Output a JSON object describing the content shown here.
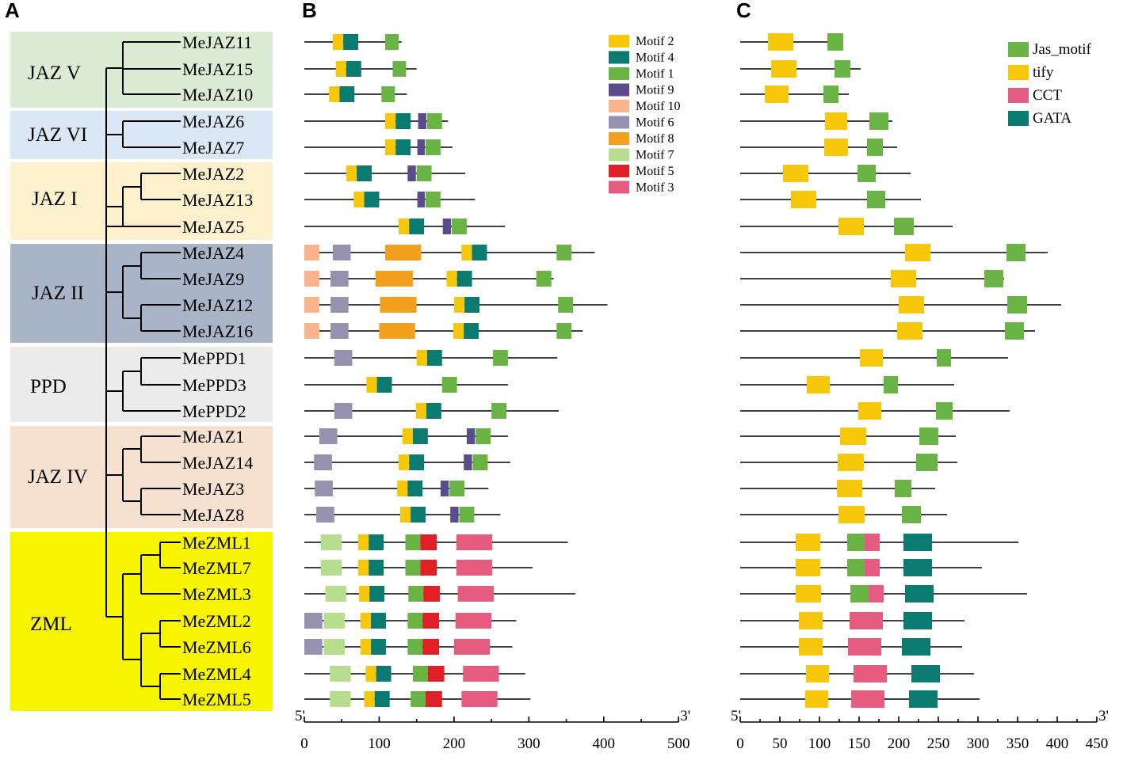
{
  "panels": {
    "a": "A",
    "b": "B",
    "c": "C"
  },
  "colors": {
    "clades": {
      "JAZ V": "#dcecd4",
      "JAZ VI": "#dbe7f5",
      "JAZ I": "#fdf0cc",
      "JAZ II": "#a9b4c6",
      "PPD": "#ebebeb",
      "JAZ IV": "#f6e1d1",
      "ZML": "#f7f500"
    },
    "motifs": {
      "Motif 1": "#6ab446",
      "Motif 2": "#f6c70a",
      "Motif 3": "#e55c80",
      "Motif 4": "#0b7b71",
      "Motif 5": "#e01f26",
      "Motif 6": "#9791b0",
      "Motif 7": "#b7de8e",
      "Motif 8": "#f4a01f",
      "Motif 9": "#5b4a8c",
      "Motif 10": "#f9b48d"
    },
    "domains": {
      "Jas_motif": "#6ab446",
      "tify": "#f6c70a",
      "CCT": "#e55c80",
      "GATA": "#0b7b71"
    }
  },
  "clades": [
    {
      "label": "JAZ V",
      "genes": [
        "MeJAZ11",
        "MeJAZ15",
        "MeJAZ10"
      ]
    },
    {
      "label": "JAZ VI",
      "genes": [
        "MeJAZ6",
        "MeJAZ7"
      ]
    },
    {
      "label": "JAZ I",
      "genes": [
        "MeJAZ2",
        "MeJAZ13",
        "MeJAZ5"
      ]
    },
    {
      "label": "JAZ II",
      "genes": [
        "MeJAZ4",
        "MeJAZ9",
        "MeJAZ12",
        "MeJAZ16"
      ]
    },
    {
      "label": "PPD",
      "genes": [
        "MePPD1",
        "MePPD3",
        "MePPD2"
      ]
    },
    {
      "label": "JAZ IV",
      "genes": [
        "MeJAZ1",
        "MeJAZ14",
        "MeJAZ3",
        "MeJAZ8"
      ]
    },
    {
      "label": "ZML",
      "genes": [
        "MeZML1",
        "MeZML7",
        "MeZML3",
        "MeZML2",
        "MeZML6",
        "MeZML4",
        "MeZML5"
      ]
    }
  ],
  "legend_b": [
    "Motif 2",
    "Motif 4",
    "Motif 1",
    "Motif 9",
    "Motif 10",
    "Motif 6",
    "Motif 8",
    "Motif 7",
    "Motif 5",
    "Motif 3"
  ],
  "legend_c": [
    "Jas_motif",
    "tify",
    "CCT",
    "GATA"
  ],
  "axis_b": {
    "max": 500,
    "ticks": [
      0,
      100,
      200,
      300,
      400,
      500
    ],
    "start_label": "5'",
    "end_label": "3'"
  },
  "axis_c": {
    "max": 450,
    "ticks": [
      0,
      50,
      100,
      150,
      200,
      250,
      300,
      350,
      400,
      450
    ],
    "start_label": "5'",
    "end_label": "3'"
  },
  "proteins": [
    {
      "gene": "MeJAZ11",
      "len_b": 130,
      "len_c": 130,
      "motifs": [
        [
          "Motif 2",
          38,
          52
        ],
        [
          "Motif 4",
          52,
          72
        ],
        [
          "Motif 1",
          108,
          126
        ]
      ],
      "domains": [
        [
          "tify",
          35,
          67
        ],
        [
          "Jas_motif",
          110,
          130
        ]
      ]
    },
    {
      "gene": "MeJAZ15",
      "len_b": 150,
      "len_c": 152,
      "motifs": [
        [
          "Motif 2",
          42,
          56
        ],
        [
          "Motif 4",
          56,
          76
        ],
        [
          "Motif 1",
          118,
          136
        ]
      ],
      "domains": [
        [
          "tify",
          39,
          71
        ],
        [
          "Jas_motif",
          119,
          139
        ]
      ]
    },
    {
      "gene": "MeJAZ10",
      "len_b": 137,
      "len_c": 137,
      "motifs": [
        [
          "Motif 2",
          33,
          47
        ],
        [
          "Motif 4",
          47,
          67
        ],
        [
          "Motif 1",
          103,
          121
        ]
      ],
      "domains": [
        [
          "tify",
          31,
          61
        ],
        [
          "Jas_motif",
          105,
          124
        ]
      ]
    },
    {
      "gene": "MeJAZ6",
      "len_b": 192,
      "len_c": 192,
      "motifs": [
        [
          "Motif 2",
          108,
          122
        ],
        [
          "Motif 4",
          122,
          142
        ],
        [
          "Motif 9",
          152,
          163
        ],
        [
          "Motif 1",
          164,
          184
        ]
      ],
      "domains": [
        [
          "tify",
          107,
          135
        ],
        [
          "Jas_motif",
          163,
          187
        ]
      ]
    },
    {
      "gene": "MeJAZ7",
      "len_b": 198,
      "len_c": 198,
      "motifs": [
        [
          "Motif 2",
          108,
          122
        ],
        [
          "Motif 4",
          122,
          142
        ],
        [
          "Motif 9",
          151,
          161
        ],
        [
          "Motif 1",
          162,
          182
        ]
      ],
      "domains": [
        [
          "tify",
          106,
          136
        ],
        [
          "Jas_motif",
          160,
          180
        ]
      ]
    },
    {
      "gene": "MeJAZ2",
      "len_b": 215,
      "len_c": 215,
      "motifs": [
        [
          "Motif 2",
          56,
          70
        ],
        [
          "Motif 4",
          70,
          90
        ],
        [
          "Motif 9",
          138,
          149
        ],
        [
          "Motif 1",
          150,
          170
        ]
      ],
      "domains": [
        [
          "tify",
          54,
          86
        ],
        [
          "Jas_motif",
          148,
          171
        ]
      ]
    },
    {
      "gene": "MeJAZ13",
      "len_b": 228,
      "len_c": 228,
      "motifs": [
        [
          "Motif 2",
          66,
          80
        ],
        [
          "Motif 4",
          80,
          100
        ],
        [
          "Motif 9",
          151,
          161
        ],
        [
          "Motif 1",
          162,
          182
        ]
      ],
      "domains": [
        [
          "tify",
          64,
          96
        ],
        [
          "Jas_motif",
          160,
          183
        ]
      ]
    },
    {
      "gene": "MeJAZ5",
      "len_b": 268,
      "len_c": 268,
      "motifs": [
        [
          "Motif 2",
          126,
          140
        ],
        [
          "Motif 4",
          140,
          160
        ],
        [
          "Motif 9",
          185,
          196
        ],
        [
          "Motif 1",
          197,
          217
        ]
      ],
      "domains": [
        [
          "tify",
          124,
          156
        ],
        [
          "Jas_motif",
          194,
          219
        ]
      ]
    },
    {
      "gene": "MeJAZ4",
      "len_b": 388,
      "len_c": 388,
      "motifs": [
        [
          "Motif 10",
          0,
          20
        ],
        [
          "Motif 6",
          38,
          62
        ],
        [
          "Motif 8",
          108,
          156
        ],
        [
          "Motif 2",
          210,
          224
        ],
        [
          "Motif 4",
          224,
          244
        ],
        [
          "Motif 1",
          337,
          357
        ]
      ],
      "domains": [
        [
          "tify",
          208,
          240
        ],
        [
          "Jas_motif",
          336,
          360
        ]
      ]
    },
    {
      "gene": "MeJAZ9",
      "len_b": 333,
      "len_c": 333,
      "motifs": [
        [
          "Motif 10",
          0,
          20
        ],
        [
          "Motif 6",
          35,
          59
        ],
        [
          "Motif 8",
          95,
          145
        ],
        [
          "Motif 2",
          190,
          204
        ],
        [
          "Motif 4",
          204,
          224
        ],
        [
          "Motif 1",
          310,
          330
        ]
      ],
      "domains": [
        [
          "tify",
          190,
          222
        ],
        [
          "Jas_motif",
          308,
          332
        ]
      ]
    },
    {
      "gene": "MeJAZ12",
      "len_b": 405,
      "len_c": 405,
      "motifs": [
        [
          "Motif 10",
          0,
          20
        ],
        [
          "Motif 6",
          35,
          59
        ],
        [
          "Motif 8",
          101,
          150
        ],
        [
          "Motif 2",
          200,
          214
        ],
        [
          "Motif 4",
          214,
          234
        ],
        [
          "Motif 1",
          339,
          359
        ]
      ],
      "domains": [
        [
          "tify",
          200,
          232
        ],
        [
          "Jas_motif",
          337,
          362
        ]
      ]
    },
    {
      "gene": "MeJAZ16",
      "len_b": 372,
      "len_c": 372,
      "motifs": [
        [
          "Motif 10",
          0,
          20
        ],
        [
          "Motif 6",
          35,
          59
        ],
        [
          "Motif 8",
          100,
          148
        ],
        [
          "Motif 2",
          199,
          213
        ],
        [
          "Motif 4",
          213,
          233
        ],
        [
          "Motif 1",
          337,
          357
        ]
      ],
      "domains": [
        [
          "tify",
          198,
          230
        ],
        [
          "Jas_motif",
          334,
          358
        ]
      ]
    },
    {
      "gene": "MePPD1",
      "len_b": 338,
      "len_c": 338,
      "motifs": [
        [
          "Motif 6",
          40,
          64
        ],
        [
          "Motif 2",
          150,
          164
        ],
        [
          "Motif 4",
          164,
          184
        ],
        [
          "Motif 1",
          252,
          272
        ]
      ],
      "domains": [
        [
          "tify",
          151,
          180
        ],
        [
          "Jas_motif",
          248,
          266
        ]
      ]
    },
    {
      "gene": "MePPD3",
      "len_b": 272,
      "len_c": 270,
      "motifs": [
        [
          "Motif 2",
          83,
          97
        ],
        [
          "Motif 4",
          97,
          117
        ],
        [
          "Motif 1",
          184,
          204
        ]
      ],
      "domains": [
        [
          "tify",
          84,
          113
        ],
        [
          "Jas_motif",
          181,
          199
        ]
      ]
    },
    {
      "gene": "MePPD2",
      "len_b": 340,
      "len_c": 340,
      "motifs": [
        [
          "Motif 6",
          40,
          64
        ],
        [
          "Motif 2",
          149,
          163
        ],
        [
          "Motif 4",
          163,
          183
        ],
        [
          "Motif 1",
          250,
          270
        ]
      ],
      "domains": [
        [
          "tify",
          149,
          178
        ],
        [
          "Jas_motif",
          247,
          268
        ]
      ]
    },
    {
      "gene": "MeJAZ1",
      "len_b": 272,
      "len_c": 272,
      "motifs": [
        [
          "Motif 6",
          20,
          44
        ],
        [
          "Motif 2",
          131,
          145
        ],
        [
          "Motif 4",
          145,
          165
        ],
        [
          "Motif 9",
          217,
          228
        ],
        [
          "Motif 1",
          229,
          249
        ]
      ],
      "domains": [
        [
          "tify",
          126,
          159
        ],
        [
          "Jas_motif",
          226,
          250
        ]
      ]
    },
    {
      "gene": "MeJAZ14",
      "len_b": 275,
      "len_c": 274,
      "motifs": [
        [
          "Motif 6",
          13,
          37
        ],
        [
          "Motif 2",
          126,
          140
        ],
        [
          "Motif 4",
          140,
          160
        ],
        [
          "Motif 9",
          213,
          224
        ],
        [
          "Motif 1",
          225,
          245
        ]
      ],
      "domains": [
        [
          "tify",
          123,
          156
        ],
        [
          "Jas_motif",
          222,
          249
        ]
      ]
    },
    {
      "gene": "MeJAZ3",
      "len_b": 246,
      "len_c": 246,
      "motifs": [
        [
          "Motif 6",
          14,
          38
        ],
        [
          "Motif 2",
          124,
          138
        ],
        [
          "Motif 4",
          138,
          158
        ],
        [
          "Motif 9",
          182,
          193
        ],
        [
          "Motif 1",
          194,
          214
        ]
      ],
      "domains": [
        [
          "tify",
          122,
          154
        ],
        [
          "Jas_motif",
          195,
          216
        ]
      ]
    },
    {
      "gene": "MeJAZ8",
      "len_b": 262,
      "len_c": 261,
      "motifs": [
        [
          "Motif 6",
          16,
          40
        ],
        [
          "Motif 2",
          128,
          142
        ],
        [
          "Motif 4",
          142,
          162
        ],
        [
          "Motif 9",
          195,
          206
        ],
        [
          "Motif 1",
          207,
          227
        ]
      ],
      "domains": [
        [
          "tify",
          124,
          157
        ],
        [
          "Jas_motif",
          204,
          228
        ]
      ]
    },
    {
      "gene": "MeZML1",
      "len_b": 352,
      "len_c": 351,
      "motifs": [
        [
          "Motif 7",
          22,
          50
        ],
        [
          "Motif 2",
          72,
          86
        ],
        [
          "Motif 4",
          86,
          106
        ],
        [
          "Motif 1",
          135,
          155
        ],
        [
          "Motif 5",
          155,
          177
        ],
        [
          "Motif 3",
          203,
          251
        ]
      ],
      "domains": [
        [
          "tify",
          70,
          101
        ],
        [
          "Jas_motif",
          135,
          157
        ],
        [
          "CCT",
          157,
          176
        ],
        [
          "GATA",
          206,
          242
        ]
      ]
    },
    {
      "gene": "MeZML7",
      "len_b": 305,
      "len_c": 305,
      "motifs": [
        [
          "Motif 7",
          22,
          50
        ],
        [
          "Motif 2",
          72,
          86
        ],
        [
          "Motif 4",
          86,
          106
        ],
        [
          "Motif 1",
          135,
          155
        ],
        [
          "Motif 5",
          155,
          177
        ],
        [
          "Motif 3",
          203,
          251
        ]
      ],
      "domains": [
        [
          "tify",
          70,
          101
        ],
        [
          "Jas_motif",
          135,
          157
        ],
        [
          "CCT",
          157,
          176
        ],
        [
          "GATA",
          206,
          242
        ]
      ]
    },
    {
      "gene": "MeZML3",
      "len_b": 362,
      "len_c": 362,
      "motifs": [
        [
          "Motif 7",
          28,
          56
        ],
        [
          "Motif 2",
          73,
          87
        ],
        [
          "Motif 4",
          87,
          107
        ],
        [
          "Motif 1",
          139,
          159
        ],
        [
          "Motif 5",
          159,
          181
        ],
        [
          "Motif 3",
          205,
          253
        ]
      ],
      "domains": [
        [
          "tify",
          70,
          102
        ],
        [
          "Jas_motif",
          139,
          162
        ],
        [
          "CCT",
          162,
          181
        ],
        [
          "GATA",
          208,
          244
        ]
      ]
    },
    {
      "gene": "MeZML2",
      "len_b": 283,
      "len_c": 283,
      "motifs": [
        [
          "Motif 6",
          0,
          24
        ],
        [
          "Motif 7",
          26,
          54
        ],
        [
          "Motif 2",
          75,
          89
        ],
        [
          "Motif 4",
          89,
          109
        ],
        [
          "Motif 1",
          138,
          158
        ],
        [
          "Motif 5",
          158,
          180
        ],
        [
          "Motif 3",
          202,
          250
        ]
      ],
      "domains": [
        [
          "tify",
          74,
          104
        ],
        [
          "CCT",
          138,
          180
        ],
        [
          "GATA",
          206,
          242
        ]
      ]
    },
    {
      "gene": "MeZML6",
      "len_b": 278,
      "len_c": 280,
      "motifs": [
        [
          "Motif 6",
          0,
          24
        ],
        [
          "Motif 7",
          26,
          54
        ],
        [
          "Motif 2",
          75,
          89
        ],
        [
          "Motif 4",
          89,
          109
        ],
        [
          "Motif 1",
          138,
          158
        ],
        [
          "Motif 5",
          158,
          180
        ],
        [
          "Motif 3",
          200,
          248
        ]
      ],
      "domains": [
        [
          "tify",
          74,
          104
        ],
        [
          "CCT",
          136,
          178
        ],
        [
          "GATA",
          204,
          240
        ]
      ]
    },
    {
      "gene": "MeZML4",
      "len_b": 295,
      "len_c": 295,
      "motifs": [
        [
          "Motif 7",
          34,
          62
        ],
        [
          "Motif 2",
          82,
          96
        ],
        [
          "Motif 4",
          96,
          116
        ],
        [
          "Motif 1",
          145,
          165
        ],
        [
          "Motif 5",
          165,
          187
        ],
        [
          "Motif 3",
          212,
          260
        ]
      ],
      "domains": [
        [
          "tify",
          83,
          112
        ],
        [
          "CCT",
          143,
          185
        ],
        [
          "GATA",
          216,
          252
        ]
      ]
    },
    {
      "gene": "MeZML5",
      "len_b": 302,
      "len_c": 302,
      "motifs": [
        [
          "Motif 7",
          34,
          62
        ],
        [
          "Motif 2",
          80,
          94
        ],
        [
          "Motif 4",
          94,
          114
        ],
        [
          "Motif 1",
          142,
          162
        ],
        [
          "Motif 5",
          162,
          184
        ],
        [
          "Motif 3",
          210,
          258
        ]
      ],
      "domains": [
        [
          "tify",
          82,
          111
        ],
        [
          "CCT",
          140,
          182
        ],
        [
          "GATA",
          213,
          249
        ]
      ]
    }
  ]
}
